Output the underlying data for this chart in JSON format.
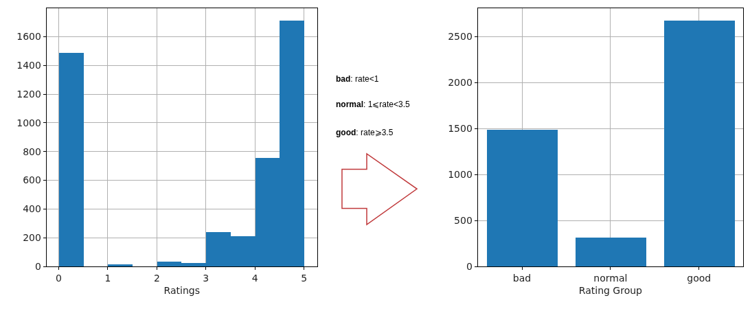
{
  "chart_data": [
    {
      "type": "histogram",
      "xlabel": "Ratings",
      "bins": [
        0,
        0.5,
        1,
        1.5,
        2,
        2.5,
        3,
        3.5,
        4,
        4.5,
        5
      ],
      "values": [
        1488,
        0,
        16,
        0,
        36,
        25,
        242,
        211,
        754,
        1712
      ],
      "color": "#1f77b4",
      "xlim": [
        -0.25,
        5.27
      ],
      "xticks": [
        0,
        1,
        2,
        3,
        4,
        5
      ],
      "ylim": [
        0,
        1798
      ],
      "yticks": [
        0,
        200,
        400,
        600,
        800,
        1000,
        1200,
        1400,
        1600
      ],
      "grid": true
    },
    {
      "type": "other",
      "annotations": [
        "bad: rate<1",
        "normal: 1⩽rate<3.5",
        "good: rate⩾3.5"
      ]
    },
    {
      "type": "bar",
      "xlabel": "Rating Group",
      "categories": [
        "bad",
        "normal",
        "good"
      ],
      "values": [
        1486,
        317,
        2673
      ],
      "color": "#1f77b4",
      "ylim": [
        0,
        2807
      ],
      "yticks": [
        0,
        500,
        1000,
        1500,
        2000,
        2500
      ],
      "grid": true
    }
  ]
}
